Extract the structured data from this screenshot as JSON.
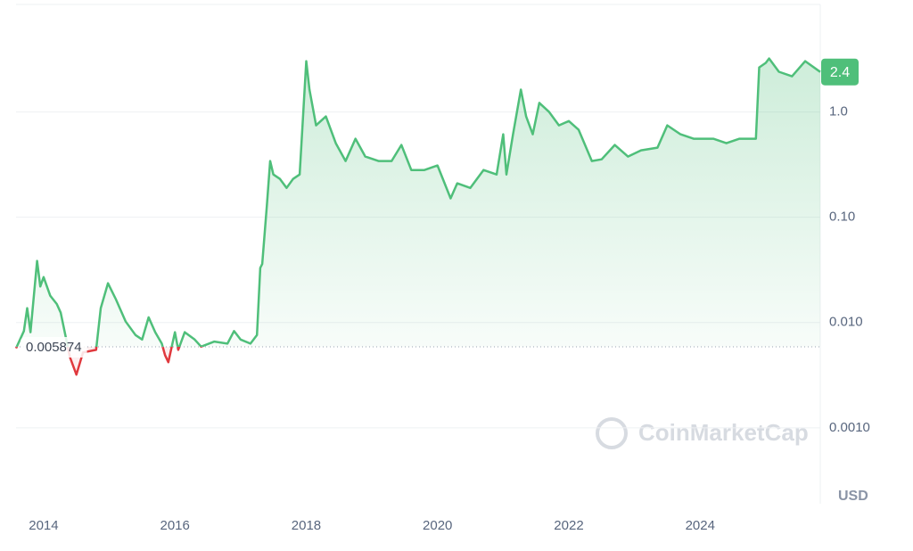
{
  "chart_data": {
    "type": "line",
    "log_y": true,
    "grid": true,
    "x": [
      2013.58,
      2013.7,
      2013.75,
      2013.8,
      2013.9,
      2013.95,
      2014.0,
      2014.1,
      2014.2,
      2014.26,
      2014.4,
      2014.5,
      2014.6,
      2014.8,
      2014.87,
      2014.98,
      2015.1,
      2015.25,
      2015.4,
      2015.5,
      2015.6,
      2015.7,
      2015.8,
      2015.85,
      2015.9,
      2016.0,
      2016.05,
      2016.15,
      2016.3,
      2016.4,
      2016.6,
      2016.8,
      2016.9,
      2017.0,
      2017.15,
      2017.25,
      2017.3,
      2017.33,
      2017.4,
      2017.45,
      2017.5,
      2017.6,
      2017.7,
      2017.8,
      2017.9,
      2018.0,
      2018.05,
      2018.15,
      2018.3,
      2018.45,
      2018.6,
      2018.75,
      2018.9,
      2019.1,
      2019.3,
      2019.45,
      2019.6,
      2019.8,
      2020.0,
      2020.2,
      2020.3,
      2020.5,
      2020.7,
      2020.9,
      2021.0,
      2021.05,
      2021.15,
      2021.27,
      2021.35,
      2021.45,
      2021.55,
      2021.7,
      2021.85,
      2022.0,
      2022.15,
      2022.35,
      2022.5,
      2022.7,
      2022.9,
      2023.1,
      2023.35,
      2023.5,
      2023.7,
      2023.9,
      2024.2,
      2024.4,
      2024.6,
      2024.85,
      2024.9,
      2025.0,
      2025.05,
      2025.2,
      2025.4,
      2025.6,
      2025.83
    ],
    "series": [
      {
        "color": "#4fbf7a",
        "below_color": "#e0393e",
        "values": [
          0.0057,
          0.0083,
          0.0137,
          0.0081,
          0.0385,
          0.022,
          0.027,
          0.018,
          0.015,
          0.0124,
          0.0047,
          0.0032,
          0.0052,
          0.0055,
          0.0137,
          0.0236,
          0.0167,
          0.0102,
          0.0076,
          0.0069,
          0.0112,
          0.0081,
          0.0063,
          0.0049,
          0.0042,
          0.0081,
          0.0055,
          0.0081,
          0.0069,
          0.0059,
          0.0066,
          0.0063,
          0.0083,
          0.0069,
          0.0063,
          0.0076,
          0.033,
          0.036,
          0.129,
          0.342,
          0.255,
          0.231,
          0.19,
          0.231,
          0.255,
          3.04,
          1.63,
          0.746,
          0.907,
          0.505,
          0.342,
          0.557,
          0.377,
          0.342,
          0.342,
          0.486,
          0.281,
          0.281,
          0.31,
          0.151,
          0.21,
          0.19,
          0.281,
          0.255,
          0.614,
          0.255,
          0.614,
          1.63,
          0.907,
          0.614,
          1.22,
          1.0,
          0.746,
          0.82,
          0.677,
          0.342,
          0.355,
          0.486,
          0.377,
          0.432,
          0.458,
          0.746,
          0.614,
          0.557,
          0.557,
          0.505,
          0.557,
          0.557,
          2.65,
          2.93,
          3.22,
          2.41,
          2.18,
          3.04,
          2.4
        ]
      }
    ],
    "xlim": [
      2013.58,
      2025.83
    ],
    "xticks": [
      2014,
      2016,
      2018,
      2020,
      2022,
      2024
    ],
    "ylim": [
      0.00019,
      10.5
    ],
    "yticks": [
      {
        "value": 0.001,
        "label": "0.0010"
      },
      {
        "value": 0.01,
        "label": "0.010"
      },
      {
        "value": 0.1,
        "label": "0.10"
      },
      {
        "value": 1,
        "label": "1.0"
      }
    ],
    "baseline": 0.005874,
    "current_price": 2.4,
    "currency": "USD",
    "watermark": "CoinMarketCap"
  }
}
